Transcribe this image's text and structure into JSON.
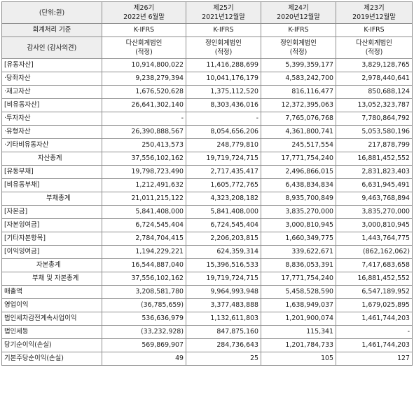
{
  "header": {
    "unit": "(단위:원)",
    "periods": [
      {
        "term": "제26기",
        "date": "2022년 6월말"
      },
      {
        "term": "제25기",
        "date": "2021년12월말"
      },
      {
        "term": "제24기",
        "date": "2020년12월말"
      },
      {
        "term": "제23기",
        "date": "2019년12월말"
      }
    ]
  },
  "standard_row": {
    "label": "회계처리 기준",
    "values": [
      "K-IFRS",
      "K-IFRS",
      "K-IFRS",
      "K-IFRS"
    ]
  },
  "auditor_row": {
    "label": "감사인 (감사의견)",
    "values": [
      {
        "name": "다산회계법인",
        "opinion": "(적정)"
      },
      {
        "name": "정인회계법인",
        "opinion": "(적정)"
      },
      {
        "name": "정인회계법인",
        "opinion": "(적정)"
      },
      {
        "name": "다산회계법인",
        "opinion": "(적정)"
      }
    ]
  },
  "rows": [
    {
      "label": "[유동자산]",
      "values": [
        "10,914,800,022",
        "11,416,288,699",
        "5,399,359,177",
        "3,829,128,765"
      ]
    },
    {
      "label": "·당좌자산",
      "values": [
        "9,238,279,394",
        "10,041,176,179",
        "4,583,242,700",
        "2,978,440,641"
      ]
    },
    {
      "label": "·재고자산",
      "values": [
        "1,676,520,628",
        "1,375,112,520",
        "816,116,477",
        "850,688,124"
      ]
    },
    {
      "label": "[비유동자산]",
      "values": [
        "26,641,302,140",
        "8,303,436,016",
        "12,372,395,063",
        "13,052,323,787"
      ]
    },
    {
      "label": "·투자자산",
      "values": [
        "-",
        "-",
        "7,765,076,768",
        "7,780,864,792"
      ]
    },
    {
      "label": "·유형자산",
      "values": [
        "26,390,888,567",
        "8,054,656,206",
        "4,361,800,741",
        "5,053,580,196"
      ]
    },
    {
      "label": "·기타비유동자산",
      "values": [
        "250,413,573",
        "248,779,810",
        "245,517,554",
        "217,878,799"
      ]
    },
    {
      "label": "자산총계",
      "values": [
        "37,556,102,162",
        "19,719,724,715",
        "17,771,754,240",
        "16,881,452,552"
      ]
    },
    {
      "label": "[유동부채]",
      "values": [
        "19,798,723,490",
        "2,717,435,417",
        "2,496,866,015",
        "2,831,823,403"
      ]
    },
    {
      "label": "[비유동부채]",
      "values": [
        "1,212,491,632",
        "1,605,772,765",
        "6,438,834,834",
        "6,631,945,491"
      ]
    },
    {
      "label": "부채총계",
      "values": [
        "21,011,215,122",
        "4,323,208,182",
        "8,935,700,849",
        "9,463,768,894"
      ]
    },
    {
      "label": "[자본금]",
      "values": [
        "5,841,408,000",
        "5,841,408,000",
        "3,835,270,000",
        "3,835,270,000"
      ]
    },
    {
      "label": "[자본잉여금]",
      "values": [
        "6,724,545,404",
        "6,724,545,404",
        "3,000,810,945",
        "3,000,810,945"
      ]
    },
    {
      "label": "[기타자본항목]",
      "values": [
        "2,784,704,415",
        "2,206,203,815",
        "1,660,349,775",
        "1,443,764,775"
      ]
    },
    {
      "label": "[이익잉여금]",
      "values": [
        "1,194,229,221",
        "624,359,314",
        "339,622,671",
        "(862,162,062)"
      ]
    },
    {
      "label": "자본총계",
      "values": [
        "16,544,887,040",
        "15,396,516,533",
        "8,836,053,391",
        "7,417,683,658"
      ]
    },
    {
      "label": "부채 및 자본총계",
      "values": [
        "37,556,102,162",
        "19,719,724,715",
        "17,771,754,240",
        "16,881,452,552"
      ]
    },
    {
      "label": "매출액",
      "values": [
        "3,208,581,780",
        "9,964,993,948",
        "5,458,528,590",
        "6,547,189,952"
      ]
    },
    {
      "label": "영업이익",
      "values": [
        "(36,785,659)",
        "3,377,483,888",
        "1,638,949,037",
        "1,679,025,895"
      ]
    },
    {
      "label": "법인세차감전계속사업이익",
      "values": [
        "536,636,979",
        "1,132,611,803",
        "1,201,900,074",
        "1,461,744,203"
      ]
    },
    {
      "label": "법인세등",
      "values": [
        "(33,232,928)",
        "847,875,160",
        "115,341",
        "-"
      ]
    },
    {
      "label": "당기순이익(손실)",
      "values": [
        "569,869,907",
        "284,736,643",
        "1,201,784,733",
        "1,461,744,203"
      ]
    },
    {
      "label": "기본주당순이익(손실)",
      "values": [
        "49",
        "25",
        "105",
        "127"
      ]
    }
  ]
}
